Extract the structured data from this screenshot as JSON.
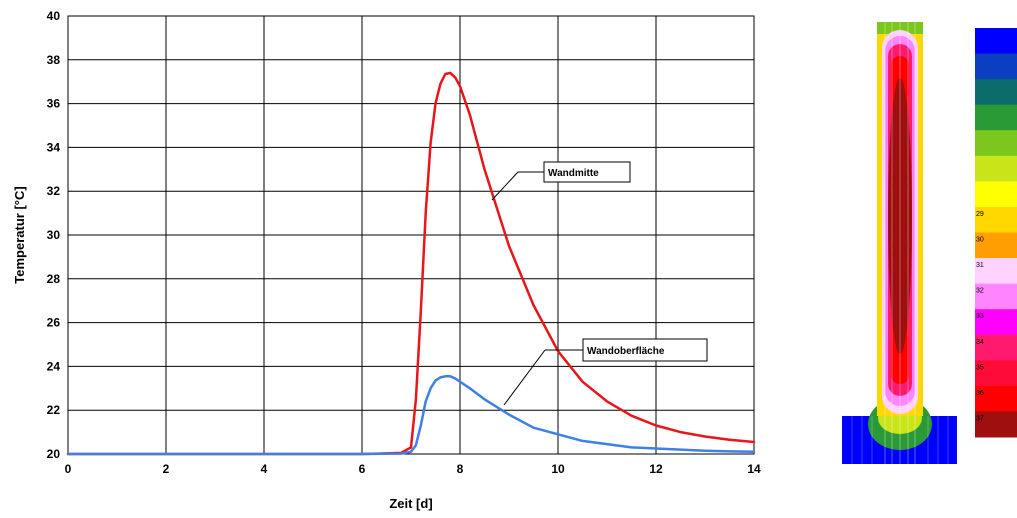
{
  "chart_data": {
    "type": "line",
    "xlabel": "Zeit [d]",
    "ylabel": "Temperatur [°C]",
    "xlim": [
      0,
      14
    ],
    "ylim": [
      20,
      40
    ],
    "x_ticks": [
      "0",
      "2",
      "4",
      "6",
      "8",
      "10",
      "12",
      "14"
    ],
    "y_ticks": [
      "20",
      "22",
      "24",
      "26",
      "28",
      "30",
      "32",
      "34",
      "36",
      "38",
      "40"
    ],
    "grid": true,
    "series": [
      {
        "name": "Wandmitte",
        "color": "#e8161b",
        "x": [
          0,
          2,
          4,
          6,
          6.8,
          7.0,
          7.1,
          7.2,
          7.3,
          7.4,
          7.5,
          7.6,
          7.7,
          7.8,
          7.9,
          8.0,
          8.2,
          8.5,
          9.0,
          9.5,
          10.0,
          10.5,
          11.0,
          11.5,
          12.0,
          12.5,
          13.0,
          13.5,
          14.0
        ],
        "y": [
          20.0,
          20.0,
          20.0,
          20.0,
          20.05,
          20.3,
          22.5,
          26.5,
          31.0,
          34.2,
          36.0,
          36.9,
          37.35,
          37.4,
          37.2,
          36.8,
          35.5,
          33.0,
          29.5,
          26.8,
          24.7,
          23.3,
          22.4,
          21.75,
          21.3,
          21.0,
          20.8,
          20.65,
          20.55
        ]
      },
      {
        "name": "Wandoberfläche",
        "color": "#3f7fe8",
        "x": [
          0,
          2,
          4,
          6,
          6.8,
          7.0,
          7.1,
          7.2,
          7.3,
          7.4,
          7.5,
          7.6,
          7.7,
          7.8,
          7.9,
          8.0,
          8.2,
          8.5,
          9.0,
          9.5,
          10.0,
          10.5,
          11.0,
          11.5,
          12.0,
          12.5,
          13.0,
          13.5,
          14.0
        ],
        "y": [
          20.0,
          20.0,
          20.0,
          20.0,
          20.02,
          20.1,
          20.4,
          21.3,
          22.4,
          23.0,
          23.35,
          23.5,
          23.55,
          23.55,
          23.45,
          23.3,
          23.0,
          22.5,
          21.8,
          21.2,
          20.9,
          20.6,
          20.45,
          20.3,
          20.25,
          20.2,
          20.15,
          20.12,
          20.1
        ]
      }
    ],
    "annotations": [
      "Wandmitte",
      "Wandoberfläche"
    ]
  },
  "legend_scale": {
    "colors": [
      "#0000ff",
      "#0a3fc2",
      "#0a6c6a",
      "#2a9a37",
      "#7cc71e",
      "#c9e51a",
      "#ffff00",
      "#ffd800",
      "#ff9e00",
      "#ffd2ff",
      "#ff85ff",
      "#ff00ff",
      "#ff1a6e",
      "#ff0b3a",
      "#ff0000",
      "#a00f0f"
    ],
    "labels": [
      "",
      "",
      "",
      "",
      "",
      "",
      "",
      "29",
      "30",
      "31",
      "32",
      "33",
      "34",
      "35",
      "36",
      "37"
    ]
  }
}
